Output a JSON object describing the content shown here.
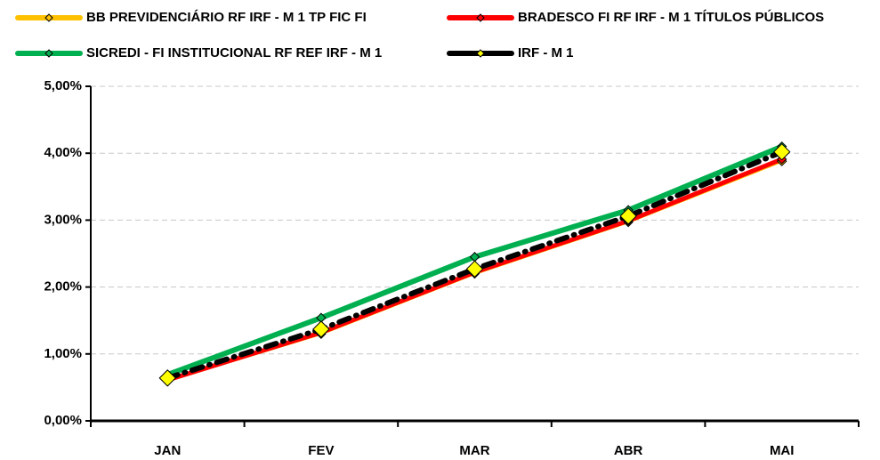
{
  "chart_data": {
    "type": "line",
    "categories": [
      "JAN",
      "FEV",
      "MAR",
      "ABR",
      "MAI"
    ],
    "series": [
      {
        "name": "BB PREVIDENCIÁRIO RF IRF - M 1 TP FIC FI",
        "color": "#ffc000",
        "values": [
          0.6,
          1.3,
          2.2,
          2.97,
          3.88
        ]
      },
      {
        "name": "BRADESCO FI RF IRF - M 1 TÍTULOS PÚBLICOS",
        "color": "#ff0000",
        "values": [
          0.61,
          1.32,
          2.22,
          2.99,
          3.91
        ]
      },
      {
        "name": "SICREDI - FI INSTITUCIONAL RF REF IRF - M 1",
        "color": "#00b050",
        "values": [
          0.69,
          1.54,
          2.45,
          3.15,
          4.1
        ]
      },
      {
        "name": "IRF - M 1",
        "color": "#000000",
        "values": [
          0.64,
          1.37,
          2.27,
          3.06,
          4.02
        ]
      }
    ],
    "ylim": [
      0,
      5
    ],
    "yticks": [
      {
        "value": 0,
        "label": "0,00%"
      },
      {
        "value": 1,
        "label": "1,00%"
      },
      {
        "value": 2,
        "label": "2,00%"
      },
      {
        "value": 3,
        "label": "3,00%"
      },
      {
        "value": 4,
        "label": "4,00%"
      },
      {
        "value": 5,
        "label": "5,00%"
      }
    ],
    "grid": true,
    "legend": "top"
  }
}
